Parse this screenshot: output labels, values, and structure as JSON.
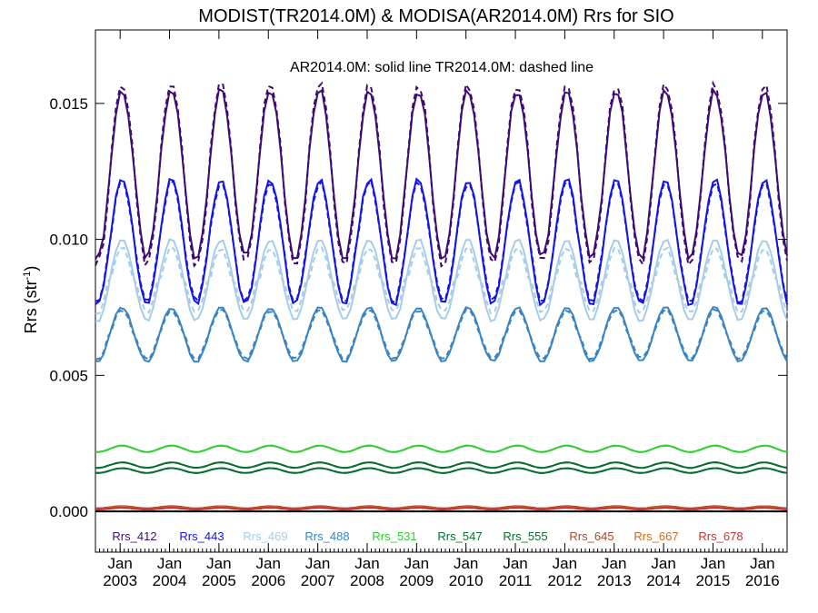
{
  "chart_data": {
    "type": "line",
    "title": "MODIST(TR2014.0M) & MODISA(AR2014.0M)  Rrs for SIO",
    "annotation": "AR2014.0M: solid line   TR2014.0M: dashed line",
    "ylabel": "Rrs (str",
    "ylabel_sup": "-1",
    "ylabel_close": ")",
    "xlim": [
      "2002-07",
      "2016-07"
    ],
    "ylim": [
      -0.0015,
      0.0177
    ],
    "yticks": [
      {
        "value": 0.0,
        "label": "0.000"
      },
      {
        "value": 0.005,
        "label": "0.005"
      },
      {
        "value": 0.01,
        "label": "0.010"
      },
      {
        "value": 0.015,
        "label": "0.015"
      }
    ],
    "xticks": [
      {
        "month": "Jan",
        "year": "2003"
      },
      {
        "month": "Jan",
        "year": "2004"
      },
      {
        "month": "Jan",
        "year": "2005"
      },
      {
        "month": "Jan",
        "year": "2006"
      },
      {
        "month": "Jan",
        "year": "2007"
      },
      {
        "month": "Jan",
        "year": "2008"
      },
      {
        "month": "Jan",
        "year": "2009"
      },
      {
        "month": "Jan",
        "year": "2010"
      },
      {
        "month": "Jan",
        "year": "2011"
      },
      {
        "month": "Jan",
        "year": "2012"
      },
      {
        "month": "Jan",
        "year": "2013"
      },
      {
        "month": "Jan",
        "year": "2014"
      },
      {
        "month": "Jan",
        "year": "2015"
      },
      {
        "month": "Jan",
        "year": "2016"
      }
    ],
    "zero_line": 0,
    "series": [
      {
        "name": "Rrs_412",
        "color": "#3d0c72",
        "mean": 0.0124,
        "amplitude": 0.0031,
        "dashed_offset": 0.0002
      },
      {
        "name": "Rrs_443",
        "color": "#1414e6",
        "mean": 0.0099,
        "amplitude": 0.0023,
        "dashed_offset": -0.0001
      },
      {
        "name": "Rrs_469",
        "color": "#a6cde8",
        "mean": 0.0085,
        "amplitude": 0.0015,
        "dashed_offset": -0.0003
      },
      {
        "name": "Rrs_488",
        "color": "#3a84c2",
        "mean": 0.0065,
        "amplitude": 0.001,
        "dashed_offset": -0.0001
      },
      {
        "name": "Rrs_531",
        "color": "#32cd32",
        "mean": 0.0023,
        "amplitude": 0.00012,
        "dashed_offset": 0.0
      },
      {
        "name": "Rrs_547",
        "color": "#0a6e32",
        "mean": 0.0017,
        "amplitude": 0.0001,
        "dashed_offset": 0.0
      },
      {
        "name": "Rrs_555",
        "color": "#0a6e32",
        "mean": 0.0015,
        "amplitude": 9e-05,
        "dashed_offset": 0.0
      },
      {
        "name": "Rrs_645",
        "color": "#a8492a",
        "mean": 0.00015,
        "amplitude": 4e-05,
        "dashed_offset": 0.0
      },
      {
        "name": "Rrs_667",
        "color": "#d2691e",
        "mean": 0.00012,
        "amplitude": 4e-05,
        "dashed_offset": 0.0
      },
      {
        "name": "Rrs_678",
        "color": "#c83232",
        "mean": 0.0001,
        "amplitude": 3e-05,
        "dashed_offset": 0.0
      }
    ],
    "grid": false,
    "legend_position": "bottom"
  }
}
